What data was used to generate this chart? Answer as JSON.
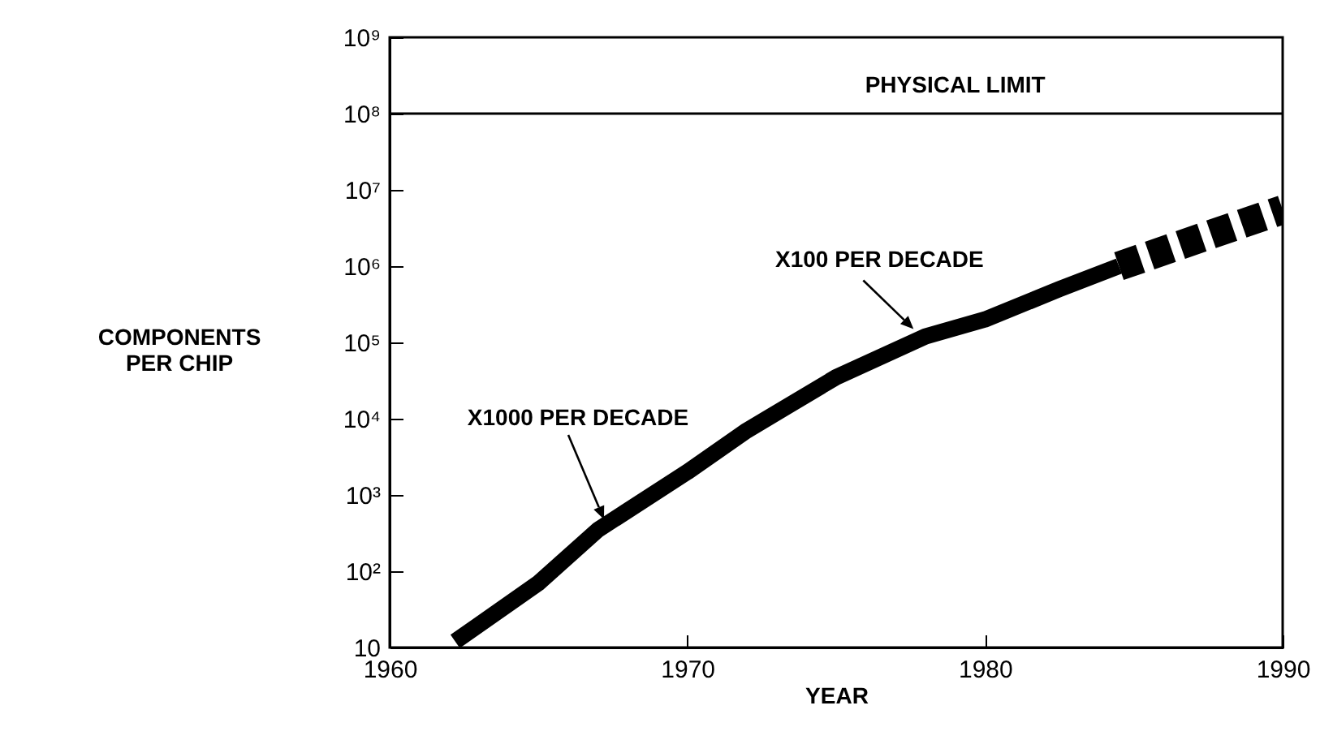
{
  "chart_data": {
    "type": "line",
    "xlabel": "YEAR",
    "ylabel": "COMPONENTS PER CHIP",
    "log": true,
    "xlim": [
      1960,
      1990
    ],
    "xticks": [
      1960,
      1970,
      1980,
      1990
    ],
    "ylim": [
      10,
      1000000000
    ],
    "yticks": [
      {
        "value": 10,
        "label": "10"
      },
      {
        "value": 100,
        "label": "10²"
      },
      {
        "value": 1000,
        "label": "10³"
      },
      {
        "value": 10000,
        "label": "10⁴"
      },
      {
        "value": 100000,
        "label": "10⁵"
      },
      {
        "value": 1000000,
        "label": "10⁶"
      },
      {
        "value": 10000000,
        "label": "10⁷"
      },
      {
        "value": 100000000,
        "label": "10⁸"
      },
      {
        "value": 1000000000,
        "label": "10⁹"
      }
    ],
    "series": [
      {
        "type": "line",
        "color": "#000000",
        "line_style": "solid",
        "x": [
          1962.2,
          1965,
          1967,
          1970,
          1972,
          1975,
          1978,
          1980,
          1982.5,
          1984.5
        ],
        "values": [
          12,
          70,
          350,
          2000,
          7000,
          35000,
          120000,
          200000,
          500000,
          1000000
        ]
      },
      {
        "type": "line",
        "color": "#000000",
        "line_style": "dashed",
        "x": [
          1984.5,
          1990
        ],
        "values": [
          1000000,
          5500000
        ]
      }
    ],
    "ref_lines": [
      {
        "axis": "y",
        "value": 100000000,
        "label": "PHYSICAL LIMIT",
        "color": "#000000"
      }
    ],
    "annotations": [
      {
        "text": "X1000 PER DECADE",
        "x": 1967.2,
        "y": 480
      },
      {
        "text": "X100 PER DECADE",
        "x": 1977.6,
        "y": 150000
      }
    ]
  }
}
